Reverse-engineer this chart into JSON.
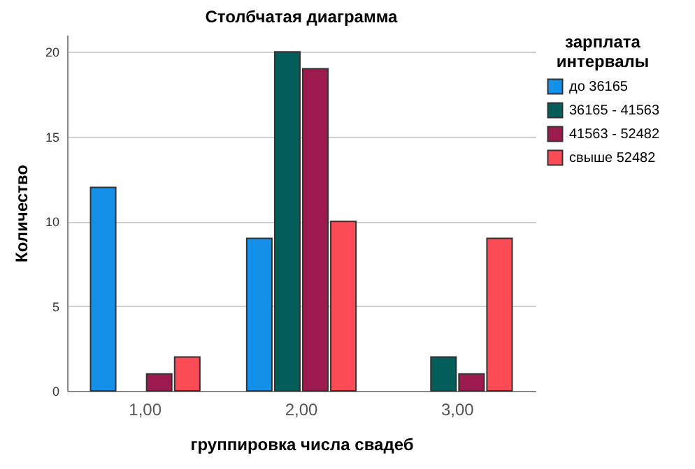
{
  "chart_data": {
    "type": "bar",
    "title": "Столбчатая диаграмма",
    "xlabel": "группировка числа свадеб",
    "ylabel": "Количество",
    "legend_title": "зарплата интервалы",
    "categories": [
      "1,00",
      "2,00",
      "3,00"
    ],
    "series": [
      {
        "name": "до 36165",
        "color": "#1590e8",
        "values": [
          12,
          9,
          null
        ]
      },
      {
        "name": "36165 - 41563",
        "color": "#035d58",
        "values": [
          null,
          20,
          2
        ]
      },
      {
        "name": "41563 - 52482",
        "color": "#9c1a4e",
        "values": [
          1,
          19,
          1
        ]
      },
      {
        "name": "свыше  52482",
        "color": "#fb4b55",
        "values": [
          2,
          10,
          9
        ]
      }
    ],
    "ylim": [
      0,
      21
    ],
    "yticks": [
      0,
      5,
      10,
      15,
      20
    ],
    "grid": "y",
    "legend": "top right"
  }
}
